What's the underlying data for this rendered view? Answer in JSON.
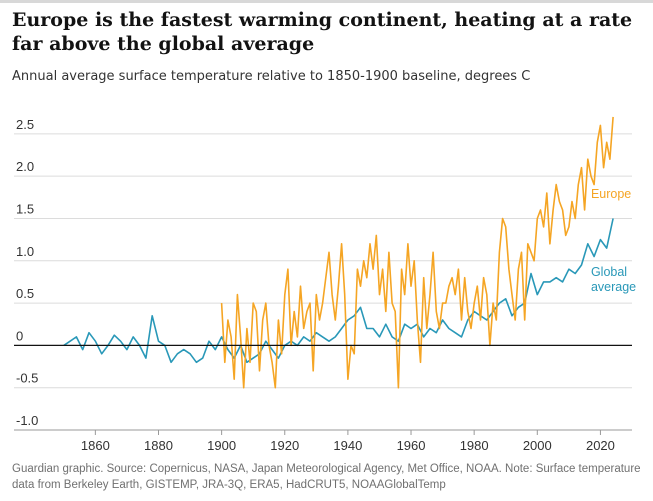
{
  "header": {
    "title": "Europe is the fastest warming continent, heating at a rate far above the global average",
    "subtitle": "Annual average surface temperature relative to 1850-1900 baseline, degrees C"
  },
  "footer": {
    "source": "Guardian graphic. Source: Copernicus, NASA, Japan Meteorological Agency, Met Office, NOAA. Note: Surface temperature data from Berkeley Earth, GISTEMP, JRA-3Q, ERA5, HadCRUT5, NOAAGlobalTemp"
  },
  "colors": {
    "europe": "#f5a524",
    "global": "#2998b8",
    "grid": "#dcdcdc",
    "zero": "#121212"
  },
  "chart_data": {
    "type": "line",
    "title": "Europe is the fastest warming continent, heating at a rate far above the global average",
    "subtitle": "Annual average surface temperature relative to 1850-1900 baseline, degrees C",
    "xlabel": "",
    "ylabel": "degrees C",
    "xlim": [
      1845,
      2030
    ],
    "ylim": [
      -1.0,
      2.9
    ],
    "x_ticks": [
      1860,
      1880,
      1900,
      1920,
      1940,
      1960,
      1980,
      2000,
      2020
    ],
    "y_ticks": [
      {
        "value": -1.0,
        "label": "-1.0"
      },
      {
        "value": -0.5,
        "label": "-0.5"
      },
      {
        "value": 0,
        "label": "0"
      },
      {
        "value": 0.5,
        "label": "0.5"
      },
      {
        "value": 1.0,
        "label": "1.0"
      },
      {
        "value": 1.5,
        "label": "1.5"
      },
      {
        "value": 2.0,
        "label": "2.0"
      },
      {
        "value": 2.5,
        "label": "2.5"
      }
    ],
    "grid": true,
    "series": [
      {
        "name": "Global average",
        "label_lines": [
          "Global",
          "average"
        ],
        "color": "#2998b8",
        "x": [
          1850,
          1852,
          1854,
          1856,
          1858,
          1860,
          1862,
          1864,
          1866,
          1868,
          1870,
          1872,
          1874,
          1876,
          1878,
          1880,
          1882,
          1884,
          1886,
          1888,
          1890,
          1892,
          1894,
          1896,
          1898,
          1900,
          1902,
          1904,
          1906,
          1908,
          1910,
          1912,
          1914,
          1916,
          1918,
          1920,
          1922,
          1924,
          1926,
          1928,
          1930,
          1932,
          1934,
          1936,
          1938,
          1940,
          1942,
          1944,
          1946,
          1948,
          1950,
          1952,
          1954,
          1956,
          1958,
          1960,
          1962,
          1964,
          1966,
          1968,
          1970,
          1972,
          1974,
          1976,
          1978,
          1980,
          1982,
          1984,
          1986,
          1988,
          1990,
          1992,
          1994,
          1996,
          1998,
          2000,
          2002,
          2004,
          2006,
          2008,
          2010,
          2012,
          2014,
          2016,
          2018,
          2020,
          2022,
          2024
        ],
        "values": [
          0.0,
          0.05,
          0.1,
          -0.05,
          0.15,
          0.05,
          -0.1,
          0.0,
          0.12,
          0.05,
          -0.05,
          0.1,
          0.0,
          -0.15,
          0.35,
          0.05,
          0.0,
          -0.2,
          -0.1,
          -0.05,
          -0.1,
          -0.2,
          -0.15,
          0.05,
          -0.05,
          0.1,
          -0.05,
          -0.15,
          0.0,
          -0.2,
          -0.15,
          -0.1,
          0.05,
          -0.05,
          -0.15,
          0.0,
          0.05,
          0.0,
          0.1,
          0.05,
          0.15,
          0.1,
          0.05,
          0.1,
          0.2,
          0.3,
          0.35,
          0.45,
          0.2,
          0.2,
          0.1,
          0.25,
          0.1,
          0.05,
          0.25,
          0.2,
          0.25,
          0.1,
          0.2,
          0.15,
          0.3,
          0.2,
          0.15,
          0.1,
          0.3,
          0.4,
          0.35,
          0.3,
          0.4,
          0.5,
          0.55,
          0.35,
          0.45,
          0.5,
          0.85,
          0.6,
          0.75,
          0.75,
          0.8,
          0.75,
          0.9,
          0.85,
          0.95,
          1.2,
          1.05,
          1.25,
          1.15,
          1.5
        ],
        "label_x": 2017,
        "label_y": [
          0.82,
          0.64
        ]
      },
      {
        "name": "Europe",
        "label_lines": [
          "Europe"
        ],
        "color": "#f5a524",
        "x": [
          1900,
          1901,
          1902,
          1903,
          1904,
          1905,
          1906,
          1907,
          1908,
          1909,
          1910,
          1911,
          1912,
          1913,
          1914,
          1915,
          1916,
          1917,
          1918,
          1919,
          1920,
          1921,
          1922,
          1923,
          1924,
          1925,
          1926,
          1927,
          1928,
          1929,
          1930,
          1931,
          1932,
          1933,
          1934,
          1935,
          1936,
          1937,
          1938,
          1939,
          1940,
          1941,
          1942,
          1943,
          1944,
          1945,
          1946,
          1947,
          1948,
          1949,
          1950,
          1951,
          1952,
          1953,
          1954,
          1955,
          1956,
          1957,
          1958,
          1959,
          1960,
          1961,
          1962,
          1963,
          1964,
          1965,
          1966,
          1967,
          1968,
          1969,
          1970,
          1971,
          1972,
          1973,
          1974,
          1975,
          1976,
          1977,
          1978,
          1979,
          1980,
          1981,
          1982,
          1983,
          1984,
          1985,
          1986,
          1987,
          1988,
          1989,
          1990,
          1991,
          1992,
          1993,
          1994,
          1995,
          1996,
          1997,
          1998,
          1999,
          2000,
          2001,
          2002,
          2003,
          2004,
          2005,
          2006,
          2007,
          2008,
          2009,
          2010,
          2011,
          2012,
          2013,
          2014,
          2015,
          2016,
          2017,
          2018,
          2019,
          2020,
          2021,
          2022,
          2023,
          2024
        ],
        "values": [
          0.5,
          -0.2,
          0.3,
          0.1,
          -0.4,
          0.6,
          0.1,
          -0.5,
          0.2,
          -0.2,
          0.5,
          0.4,
          -0.3,
          0.3,
          0.5,
          0.0,
          -0.2,
          -0.5,
          0.3,
          -0.1,
          0.6,
          0.9,
          0.0,
          0.4,
          0.1,
          0.7,
          0.2,
          0.4,
          0.5,
          -0.3,
          0.6,
          0.3,
          0.5,
          0.8,
          1.1,
          0.6,
          0.3,
          0.7,
          1.2,
          0.6,
          -0.4,
          0.0,
          -0.1,
          0.9,
          0.7,
          1.0,
          0.8,
          1.2,
          0.9,
          1.3,
          0.6,
          0.9,
          0.4,
          1.1,
          0.5,
          0.4,
          -0.5,
          0.9,
          0.6,
          1.2,
          0.7,
          1.0,
          0.3,
          -0.2,
          0.8,
          0.2,
          0.6,
          1.1,
          0.4,
          0.2,
          0.5,
          0.5,
          0.7,
          0.8,
          0.6,
          0.9,
          0.3,
          0.8,
          0.4,
          0.2,
          0.5,
          0.7,
          0.3,
          0.8,
          0.6,
          0.0,
          0.5,
          0.3,
          1.1,
          1.5,
          1.4,
          0.9,
          0.6,
          0.3,
          0.9,
          1.1,
          0.3,
          1.2,
          1.1,
          1.0,
          1.5,
          1.6,
          1.4,
          1.8,
          1.2,
          1.6,
          1.9,
          1.7,
          1.6,
          1.3,
          1.4,
          1.7,
          1.5,
          1.9,
          2.1,
          1.6,
          2.2,
          2.0,
          1.9,
          2.4,
          2.6,
          2.1,
          2.4,
          2.2,
          2.7
        ],
        "label_x": 2017,
        "label_y": [
          1.74
        ]
      }
    ]
  }
}
